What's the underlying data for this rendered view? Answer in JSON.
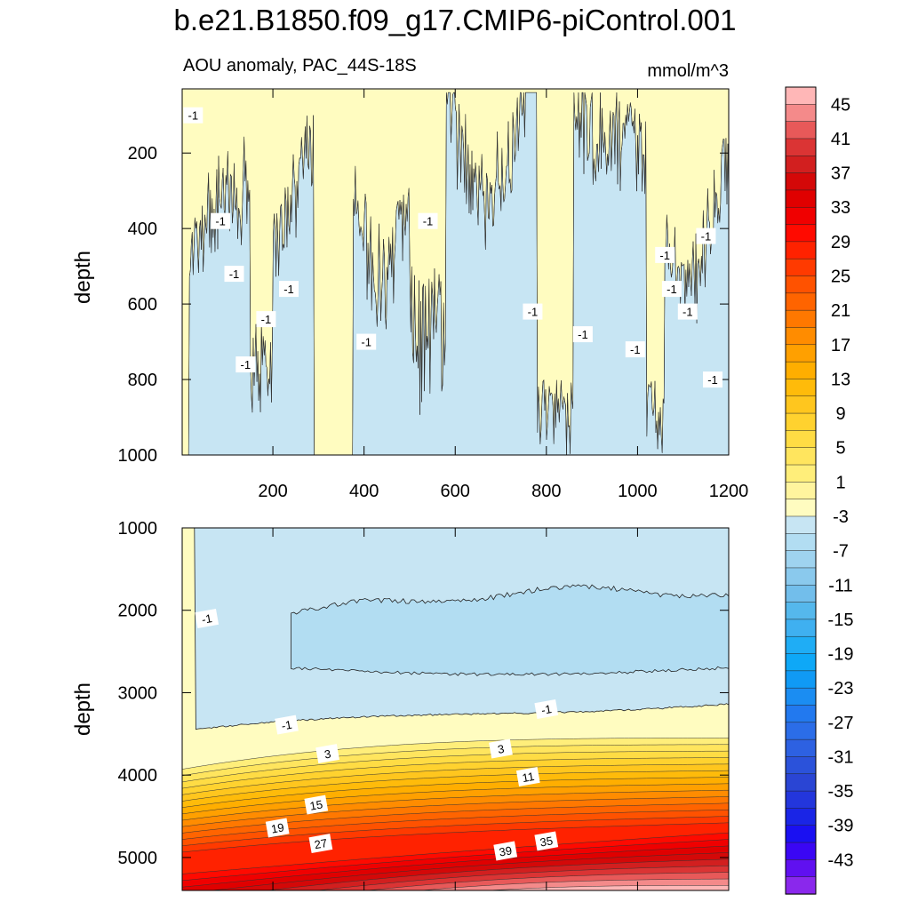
{
  "chart_data": {
    "type": "contour",
    "title": "b.e21.B1850.f09_g17.CMIP6-piControl.001",
    "subtitle": "AOU anomaly, PAC_44S-18S",
    "units": "mmol/m^3",
    "xlabel": "",
    "ylabel": "depth",
    "xlim": [
      1,
      1200
    ],
    "xticks": [
      200,
      400,
      600,
      800,
      1000,
      1200
    ],
    "panels": [
      {
        "name": "upper",
        "ylim": [
          1000,
          30
        ],
        "yticks": [
          200,
          400,
          600,
          800,
          1000
        ],
        "show_x_tick_labels": true,
        "contour_labels": [
          {
            "x": 25,
            "y": 100,
            "text": "-1"
          },
          {
            "x": 85,
            "y": 380,
            "text": "-1"
          },
          {
            "x": 115,
            "y": 520,
            "text": "-1"
          },
          {
            "x": 185,
            "y": 640,
            "text": "-1"
          },
          {
            "x": 140,
            "y": 760,
            "text": "-1"
          },
          {
            "x": 235,
            "y": 560,
            "text": "-1"
          },
          {
            "x": 405,
            "y": 700,
            "text": "-1"
          },
          {
            "x": 540,
            "y": 380,
            "text": "-1"
          },
          {
            "x": 770,
            "y": 620,
            "text": "-1"
          },
          {
            "x": 880,
            "y": 680,
            "text": "-1"
          },
          {
            "x": 995,
            "y": 720,
            "text": "-1"
          },
          {
            "x": 1060,
            "y": 470,
            "text": "-1"
          },
          {
            "x": 1075,
            "y": 560,
            "text": "-1"
          },
          {
            "x": 1110,
            "y": 620,
            "text": "-1"
          },
          {
            "x": 1150,
            "y": 420,
            "text": "-1"
          },
          {
            "x": 1165,
            "y": 800,
            "text": "-1"
          }
        ]
      },
      {
        "name": "lower",
        "ylim": [
          1000,
          5400
        ],
        "yticks": [
          1000,
          2000,
          3000,
          4000,
          5000
        ],
        "show_x_tick_labels": false,
        "contour_labels": [
          {
            "x": 55,
            "y": 2100,
            "text": "-1"
          },
          {
            "x": 230,
            "y": 3390,
            "text": "-1"
          },
          {
            "x": 800,
            "y": 3200,
            "text": "-1"
          },
          {
            "x": 320,
            "y": 3740,
            "text": "3"
          },
          {
            "x": 700,
            "y": 3680,
            "text": "3"
          },
          {
            "x": 760,
            "y": 4020,
            "text": "11"
          },
          {
            "x": 295,
            "y": 4360,
            "text": "15"
          },
          {
            "x": 210,
            "y": 4640,
            "text": "19"
          },
          {
            "x": 305,
            "y": 4830,
            "text": "27"
          },
          {
            "x": 710,
            "y": 4920,
            "text": "39"
          },
          {
            "x": 800,
            "y": 4800,
            "text": "35"
          }
        ]
      }
    ],
    "colorbar": {
      "levels": [
        47,
        45,
        43,
        41,
        39,
        37,
        35,
        33,
        31,
        29,
        27,
        25,
        23,
        21,
        19,
        17,
        15,
        13,
        11,
        9,
        7,
        5,
        3,
        1,
        -1,
        -3,
        -5,
        -7,
        -9,
        -11,
        -13,
        -15,
        -17,
        -19,
        -21,
        -23,
        -25,
        -27,
        -29,
        -31,
        -33,
        -35,
        -37,
        -39,
        -41,
        -43,
        -45
      ],
      "labels": [
        "45",
        "41",
        "37",
        "33",
        "29",
        "25",
        "21",
        "17",
        "13",
        "9",
        "5",
        "1",
        "-3",
        "-7",
        "-11",
        "-15",
        "-19",
        "-23",
        "-27",
        "-31",
        "-35",
        "-39",
        "-43"
      ],
      "colors": [
        "#ffb7b7",
        "#f48a8a",
        "#e85959",
        "#db3434",
        "#d21f1f",
        "#d40808",
        "#e00000",
        "#f00000",
        "#ff0a00",
        "#ff2200",
        "#ff3a00",
        "#ff5200",
        "#ff6400",
        "#ff7800",
        "#ff8c00",
        "#ffa000",
        "#ffae00",
        "#ffbb0a",
        "#ffc61e",
        "#ffd22f",
        "#ffdc44",
        "#ffe55e",
        "#ffee7a",
        "#fff49e",
        "#fffcc0",
        "#c7e5f3",
        "#b2ddf2",
        "#9fd3ef",
        "#8ac9ed",
        "#72beeb",
        "#55b8ec",
        "#3fb0f0",
        "#1fadf5",
        "#0ea8f7",
        "#109af5",
        "#1b8df2",
        "#2279ef",
        "#2b6de8",
        "#2d61e2",
        "#2b52da",
        "#2a45d4",
        "#2336dc",
        "#1a25e6",
        "#1a10f2",
        "#3a06f4",
        "#6010f0",
        "#8a28ec"
      ]
    },
    "colors": {
      "warm_light": "#fffcc0",
      "cool_light": "#c7e5f3",
      "cool_mid": "#b2ddf2"
    }
  }
}
